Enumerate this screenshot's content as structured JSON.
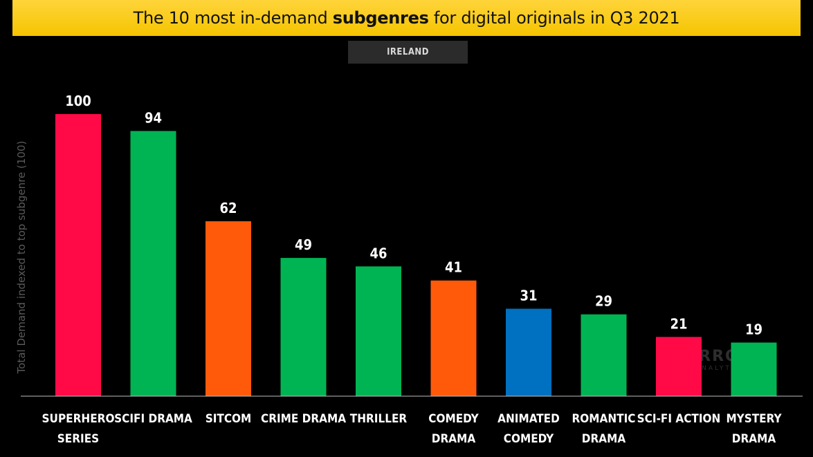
{
  "header": {
    "title_before": "The 10 most in-demand ",
    "title_bold": "subgenres",
    "title_after": " for digital originals in Q3 2021",
    "region": "IRELAND"
  },
  "watermark": {
    "text": "PARROT",
    "subtext": "ANALYTICS"
  },
  "colors": {
    "background": "#000000",
    "title_bar": "#fcca16",
    "red": "#ff0a47",
    "green": "#00b454",
    "orange": "#ff5a0a",
    "blue": "#0070c0"
  },
  "chart_data": {
    "type": "bar",
    "title": "The 10 most in-demand subgenres for digital originals in Q3 2021",
    "subtitle": "IRELAND",
    "xlabel": "",
    "ylabel": "Total Demand indexed to top subgenre (100)",
    "ylim": [
      0,
      100
    ],
    "grid": false,
    "legend": "none",
    "categories": [
      [
        "SUPERHERO",
        "SERIES"
      ],
      [
        "SCIFI DRAMA"
      ],
      [
        "SITCOM"
      ],
      [
        "CRIME DRAMA"
      ],
      [
        "THRILLER"
      ],
      [
        "COMEDY",
        "DRAMA"
      ],
      [
        "ANIMATED",
        "COMEDY"
      ],
      [
        "ROMANTIC",
        "DRAMA"
      ],
      [
        "SCI-FI ACTION"
      ],
      [
        "MYSTERY",
        "DRAMA"
      ]
    ],
    "values": [
      100,
      94,
      62,
      49,
      46,
      41,
      31,
      29,
      21,
      19
    ],
    "value_labels": [
      "100",
      "94",
      "62",
      "49",
      "46",
      "41",
      "31",
      "29",
      "21",
      "19"
    ],
    "bar_colors": [
      "#ff0a47",
      "#00b454",
      "#ff5a0a",
      "#00b454",
      "#00b454",
      "#ff5a0a",
      "#0070c0",
      "#00b454",
      "#ff0a47",
      "#00b454"
    ]
  }
}
